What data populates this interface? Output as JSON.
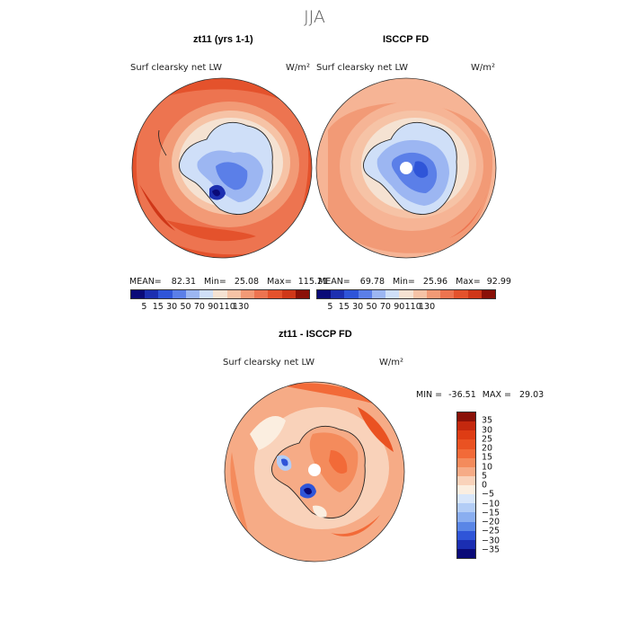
{
  "season": "JJA",
  "panel1": {
    "title": "zt11 (yrs 1-1)",
    "variable": "Surf clearsky net LW",
    "units": "W/m²",
    "mean_label": "MEAN=",
    "mean": "82.31",
    "min_label": "Min=",
    "min": "25.08",
    "max_label": "Max=",
    "max": "115.21"
  },
  "panel2": {
    "title": "ISCCP FD",
    "variable": "Surf clearsky net LW",
    "units": "W/m²",
    "mean_label": "MEAN=",
    "mean": "69.78",
    "min_label": "Min=",
    "min": "25.96",
    "max_label": "Max=",
    "max": "92.99"
  },
  "panel3": {
    "title": "zt11 - ISCCP FD",
    "variable": "Surf clearsky net LW",
    "units": "W/m²",
    "min_label": "MIN =",
    "min": "-36.51",
    "max_label": "MAX =",
    "max": "29.03"
  },
  "colorbar_main": {
    "ticks": [
      "5",
      "15",
      "30",
      "50",
      "70",
      "90",
      "110",
      "130"
    ],
    "colors": [
      "#0a0a78",
      "#1c2fb0",
      "#2f55d8",
      "#5b7fe8",
      "#9cb6f2",
      "#cfdff8",
      "#f5e2d2",
      "#f6c3a6",
      "#f29a76",
      "#ed7450",
      "#e4522c",
      "#cf3718",
      "#8a1108"
    ]
  },
  "colorbar_diff": {
    "ticks": [
      "35",
      "30",
      "25",
      "20",
      "15",
      "10",
      "5",
      "0",
      "−5",
      "−10",
      "−15",
      "−20",
      "−25",
      "−30",
      "−35"
    ],
    "colors": [
      "#8a1108",
      "#c4280e",
      "#de3c14",
      "#ea5222",
      "#f26a38",
      "#f48b5c",
      "#f6ab86",
      "#f9d2ba",
      "#fbeee0",
      "#d8e6fa",
      "#b3cdf6",
      "#8aaef0",
      "#5a86e6",
      "#2f55d8",
      "#1b2eb2",
      "#0a0a78"
    ]
  },
  "chart_data": [
    {
      "type": "heatmap",
      "projection": "south-polar-stereographic",
      "title": "zt11 (yrs 1-1)",
      "subtitle": "Surf clearsky net LW",
      "units": "W/m²",
      "mean": 82.31,
      "min": 25.08,
      "max": 115.21,
      "color_levels": [
        5,
        15,
        30,
        50,
        70,
        90,
        110,
        130
      ]
    },
    {
      "type": "heatmap",
      "projection": "south-polar-stereographic",
      "title": "ISCCP FD",
      "subtitle": "Surf clearsky net LW",
      "units": "W/m²",
      "mean": 69.78,
      "min": 25.96,
      "max": 92.99,
      "color_levels": [
        5,
        15,
        30,
        50,
        70,
        90,
        110,
        130
      ]
    },
    {
      "type": "heatmap",
      "projection": "south-polar-stereographic",
      "title": "zt11 - ISCCP FD",
      "subtitle": "Surf clearsky net LW",
      "units": "W/m²",
      "min": -36.51,
      "max": 29.03,
      "color_levels": [
        -35,
        -30,
        -25,
        -20,
        -15,
        -10,
        -5,
        0,
        5,
        10,
        15,
        20,
        25,
        30,
        35
      ]
    }
  ]
}
